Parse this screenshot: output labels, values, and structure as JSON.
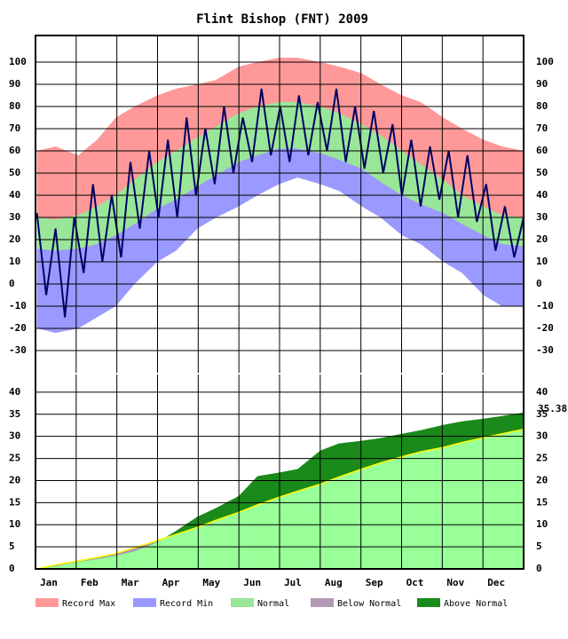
{
  "chart_data": [
    {
      "type": "band",
      "title": "Flint Bishop (FNT) 2009",
      "x": [
        1,
        15,
        32,
        46,
        60,
        74,
        91,
        105,
        121,
        135,
        152,
        166,
        182,
        196,
        213,
        227,
        244,
        258,
        274,
        288,
        305,
        319,
        335,
        349,
        365
      ],
      "xlim": [
        0,
        365
      ],
      "ylim": [
        -40,
        112
      ],
      "yticks": [
        -30,
        -20,
        -10,
        0,
        10,
        20,
        30,
        40,
        50,
        60,
        70,
        80,
        90,
        100
      ],
      "grid": true,
      "series": [
        {
          "name": "Record Max",
          "color": "#ff9999",
          "values": [
            60,
            62,
            58,
            65,
            75,
            80,
            85,
            88,
            90,
            92,
            98,
            100,
            102,
            102,
            100,
            98,
            95,
            90,
            85,
            82,
            75,
            70,
            65,
            62,
            60
          ]
        },
        {
          "name": "Record Min",
          "color": "#9999ff",
          "values": [
            -20,
            -22,
            -20,
            -15,
            -10,
            0,
            10,
            15,
            25,
            30,
            35,
            40,
            45,
            48,
            45,
            42,
            35,
            30,
            22,
            18,
            10,
            5,
            -5,
            -10,
            -10
          ]
        },
        {
          "name": "Normal",
          "color": "#99e699",
          "high": [
            30,
            29,
            31,
            35,
            40,
            47,
            55,
            60,
            66,
            71,
            77,
            80,
            82,
            82,
            80,
            77,
            72,
            67,
            60,
            54,
            47,
            40,
            35,
            31,
            30
          ],
          "low": [
            16,
            15,
            16,
            18,
            22,
            27,
            34,
            38,
            44,
            49,
            55,
            58,
            61,
            61,
            59,
            56,
            52,
            46,
            40,
            36,
            32,
            27,
            22,
            18,
            17
          ]
        }
      ],
      "observed": {
        "color": "#000066",
        "x": [
          1,
          8,
          15,
          22,
          29,
          36,
          43,
          50,
          57,
          64,
          71,
          78,
          85,
          92,
          99,
          106,
          113,
          120,
          127,
          134,
          141,
          148,
          155,
          162,
          169,
          176,
          183,
          190,
          197,
          204,
          211,
          218,
          225,
          232,
          239,
          246,
          253,
          260,
          267,
          274,
          281,
          288,
          295,
          302,
          309,
          316,
          323,
          330,
          337,
          344,
          351,
          358,
          365
        ],
        "values": [
          32,
          -5,
          25,
          -15,
          30,
          5,
          45,
          10,
          40,
          12,
          55,
          25,
          60,
          30,
          65,
          30,
          75,
          40,
          70,
          45,
          80,
          50,
          75,
          55,
          88,
          58,
          80,
          55,
          85,
          58,
          82,
          60,
          88,
          55,
          80,
          52,
          78,
          50,
          72,
          40,
          65,
          35,
          62,
          38,
          60,
          30,
          58,
          28,
          45,
          15,
          35,
          12,
          30
        ]
      }
    },
    {
      "type": "cumulative",
      "categories": [
        "Jan",
        "Feb",
        "Mar",
        "Apr",
        "May",
        "Jun",
        "Jul",
        "Aug",
        "Sep",
        "Oct",
        "Nov",
        "Dec"
      ],
      "x": [
        1,
        15,
        32,
        46,
        60,
        74,
        91,
        105,
        121,
        135,
        152,
        166,
        182,
        196,
        213,
        227,
        244,
        258,
        274,
        288,
        305,
        319,
        335,
        349,
        365
      ],
      "xlim": [
        0,
        365
      ],
      "ylim": [
        0,
        44
      ],
      "yticks": [
        0,
        5,
        10,
        15,
        20,
        25,
        30,
        35,
        40
      ],
      "grid": true,
      "series": [
        {
          "color": "#99ff99",
          "line_color": "#ffff00",
          "values": [
            0,
            0.9,
            1.8,
            2.6,
            3.5,
            4.8,
            6.4,
            7.8,
            9.4,
            11.0,
            12.8,
            14.5,
            16.2,
            17.6,
            19.2,
            20.8,
            22.6,
            24.0,
            25.4,
            26.5,
            27.5,
            28.6,
            29.7,
            30.6,
            31.6
          ]
        },
        {
          "values": [
            0,
            0.6,
            1.6,
            2.2,
            3.0,
            4.0,
            6.0,
            8.6,
            11.8,
            13.8,
            16.5,
            21.0,
            21.8,
            22.6,
            26.8,
            28.4,
            29.0,
            29.6,
            30.6,
            31.4,
            32.6,
            33.4,
            34.0,
            34.6,
            35.38
          ]
        }
      ],
      "legend": [
        {
          "name": "Below Normal",
          "color": "#b399b3"
        },
        {
          "name": "Above Normal",
          "color": "#1a8a1a"
        }
      ]
    }
  ]
}
